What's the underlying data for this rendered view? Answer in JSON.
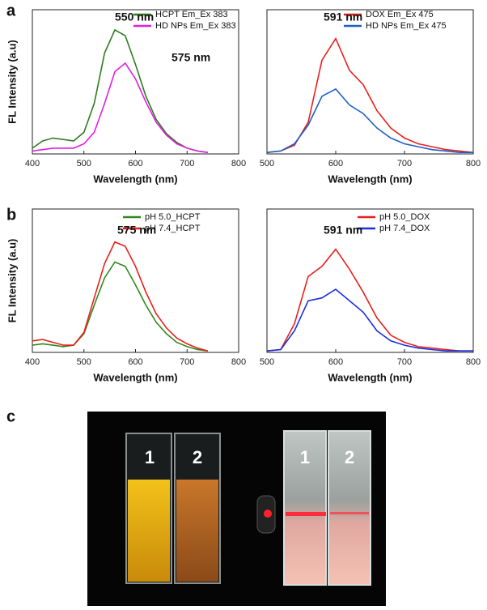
{
  "panel_labels": [
    "a",
    "b",
    "c"
  ],
  "photo": {
    "labels": [
      "1",
      "2",
      "1",
      "2"
    ]
  },
  "chart_data": [
    {
      "type": "line",
      "xlabel": "Wavelength (nm)",
      "ylabel": "FL Intensity (a.u)",
      "xlim": [
        400,
        800
      ],
      "xticks": [
        400,
        500,
        600,
        700,
        800
      ],
      "ylim": [
        0,
        100
      ],
      "legend": "upper right",
      "annotations": [
        "550 nm",
        "575 nm"
      ],
      "series": [
        {
          "name": "HCPT Em_Ex 383",
          "color": "#2e7d1e",
          "x": [
            400,
            420,
            440,
            460,
            480,
            500,
            520,
            540,
            560,
            580,
            600,
            620,
            640,
            660,
            680,
            700,
            720,
            740
          ],
          "values": [
            4,
            9,
            11,
            10,
            9,
            15,
            35,
            70,
            86,
            82,
            62,
            40,
            24,
            14,
            8,
            4,
            2,
            1
          ]
        },
        {
          "name": "HD NPs Em_Ex 383",
          "color": "#e020e0",
          "x": [
            400,
            420,
            440,
            460,
            480,
            500,
            520,
            540,
            560,
            580,
            600,
            620,
            640,
            660,
            680,
            700,
            720,
            740
          ],
          "values": [
            2,
            3,
            4,
            4,
            4,
            7,
            15,
            35,
            57,
            63,
            52,
            36,
            22,
            13,
            7,
            4,
            2,
            1
          ]
        }
      ]
    },
    {
      "type": "line",
      "xlabel": "Wavelength (nm)",
      "xlim": [
        500,
        800
      ],
      "xticks": [
        500,
        600,
        700,
        800
      ],
      "ylim": [
        0,
        100
      ],
      "legend": "upper right",
      "annotations": [
        "591 nm"
      ],
      "series": [
        {
          "name": "DOX Em_Ex 475",
          "color": "#e8201c",
          "x": [
            500,
            520,
            540,
            560,
            580,
            600,
            620,
            640,
            660,
            680,
            700,
            720,
            740,
            760,
            780,
            800
          ],
          "values": [
            1,
            2,
            6,
            22,
            65,
            80,
            58,
            48,
            30,
            18,
            11,
            7,
            5,
            3,
            2,
            1
          ]
        },
        {
          "name": "HD NPs Em_Ex 475",
          "color": "#1f5fc8",
          "x": [
            500,
            520,
            540,
            560,
            580,
            600,
            620,
            640,
            660,
            680,
            700,
            720,
            740,
            760,
            780,
            800
          ],
          "values": [
            1,
            2,
            7,
            20,
            40,
            45,
            34,
            28,
            18,
            11,
            7,
            5,
            3,
            2,
            1,
            1
          ]
        }
      ]
    },
    {
      "type": "line",
      "xlabel": "Wavelength (nm)",
      "ylabel": "FL Intensity (a.u)",
      "xlim": [
        400,
        800
      ],
      "xticks": [
        400,
        500,
        600,
        700,
        800
      ],
      "ylim": [
        0,
        100
      ],
      "legend": "upper right",
      "annotations": [
        "575 nm"
      ],
      "series": [
        {
          "name": "pH 5.0_HCPT",
          "color": "#2e8b1e",
          "x": [
            400,
            420,
            440,
            460,
            480,
            500,
            520,
            540,
            560,
            580,
            600,
            620,
            640,
            660,
            680,
            700,
            720,
            740
          ],
          "values": [
            5,
            6,
            5,
            4,
            5,
            13,
            33,
            52,
            63,
            60,
            47,
            33,
            21,
            13,
            7,
            4,
            2,
            1
          ]
        },
        {
          "name": "pH 7.4_HCPT",
          "color": "#e8201c",
          "x": [
            400,
            420,
            440,
            460,
            480,
            500,
            520,
            540,
            560,
            580,
            600,
            620,
            640,
            660,
            680,
            700,
            720,
            740
          ],
          "values": [
            8,
            9,
            7,
            5,
            5,
            14,
            38,
            62,
            77,
            74,
            60,
            42,
            27,
            17,
            10,
            6,
            3,
            1
          ]
        }
      ]
    },
    {
      "type": "line",
      "xlabel": "Wavelength (nm)",
      "xlim": [
        500,
        800
      ],
      "xticks": [
        500,
        600,
        700,
        800
      ],
      "ylim": [
        0,
        100
      ],
      "legend": "upper right",
      "annotations": [
        "591 nm"
      ],
      "series": [
        {
          "name": "pH 5.0_DOX",
          "color": "#e8201c",
          "x": [
            500,
            520,
            540,
            560,
            580,
            600,
            620,
            640,
            660,
            680,
            700,
            720,
            740,
            760,
            780,
            800
          ],
          "values": [
            1,
            2,
            20,
            53,
            60,
            72,
            58,
            42,
            24,
            12,
            7,
            4,
            3,
            2,
            1,
            1
          ]
        },
        {
          "name": "pH 7.4_DOX",
          "color": "#1a2fe0",
          "x": [
            500,
            520,
            540,
            560,
            580,
            600,
            620,
            640,
            660,
            680,
            700,
            720,
            740,
            760,
            780,
            800
          ],
          "values": [
            1,
            2,
            15,
            36,
            38,
            44,
            36,
            28,
            15,
            8,
            5,
            3,
            2,
            1,
            1,
            1
          ]
        }
      ]
    }
  ]
}
